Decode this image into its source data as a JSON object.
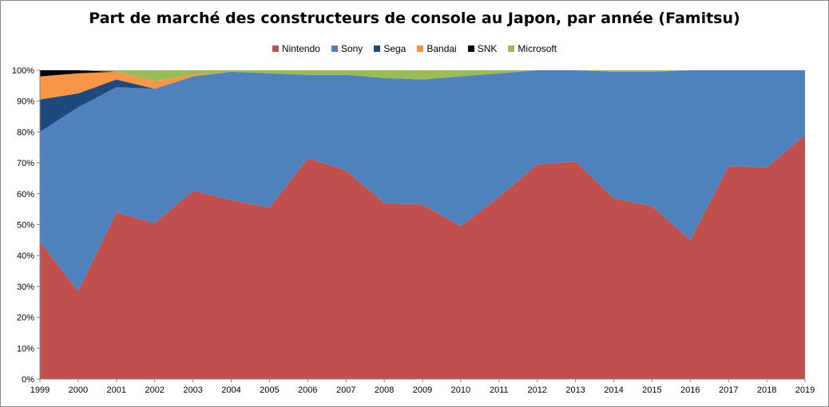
{
  "chart_data": {
    "type": "area",
    "stacked": true,
    "percent": true,
    "title": "Part de marché des constructeurs de console au Japon, par année (Famitsu)",
    "x": [
      "1999",
      "2000",
      "2001",
      "2002",
      "2003",
      "2004",
      "2005",
      "2006",
      "2007",
      "2008",
      "2009",
      "2010",
      "2011",
      "2012",
      "2013",
      "2014",
      "2015",
      "2016",
      "2017",
      "2018",
      "2019"
    ],
    "ylim": [
      0,
      100
    ],
    "yticks": [
      "0%",
      "10%",
      "20%",
      "30%",
      "40%",
      "50%",
      "60%",
      "70%",
      "80%",
      "90%",
      "100%"
    ],
    "grid": false,
    "legend": "top",
    "colors": {
      "Nintendo": "#c0504d",
      "Sony": "#4f81bd",
      "Sega": "#1f497d",
      "Bandai": "#f79646",
      "SNK": "#000000",
      "Microsoft": "#9bbb59"
    },
    "series": [
      {
        "name": "Nintendo",
        "values": [
          44.5,
          28.5,
          54,
          50.5,
          61,
          58,
          55.5,
          71.5,
          67.5,
          57,
          56.5,
          49.5,
          59,
          69.5,
          70.5,
          58.5,
          56,
          45,
          69,
          68.5,
          79
        ]
      },
      {
        "name": "Sony",
        "values": [
          35.5,
          59.5,
          40.5,
          43.5,
          37,
          41.5,
          43.5,
          27,
          31,
          40.5,
          40.5,
          48.5,
          40,
          30.5,
          29.5,
          41,
          43.5,
          55,
          31,
          31.5,
          21
        ]
      },
      {
        "name": "Sega",
        "values": [
          10.5,
          4.5,
          2.5,
          0,
          0,
          0,
          0,
          0,
          0,
          0,
          0,
          0,
          0,
          0,
          0,
          0,
          0,
          0,
          0,
          0,
          0
        ]
      },
      {
        "name": "Bandai",
        "values": [
          7.5,
          6.5,
          2.5,
          2.5,
          0.5,
          0,
          0,
          0,
          0,
          0,
          0,
          0,
          0,
          0,
          0,
          0,
          0,
          0,
          0,
          0,
          0
        ]
      },
      {
        "name": "SNK",
        "values": [
          2,
          1,
          0,
          0,
          0,
          0,
          0,
          0,
          0,
          0,
          0,
          0,
          0,
          0,
          0,
          0,
          0,
          0,
          0,
          0,
          0
        ]
      },
      {
        "name": "Microsoft",
        "values": [
          0,
          0,
          0.5,
          3.5,
          1.5,
          0.5,
          1,
          1.5,
          1.5,
          2.5,
          3,
          2,
          1,
          0,
          0,
          0.5,
          0.5,
          0,
          0,
          0,
          0
        ]
      }
    ]
  }
}
